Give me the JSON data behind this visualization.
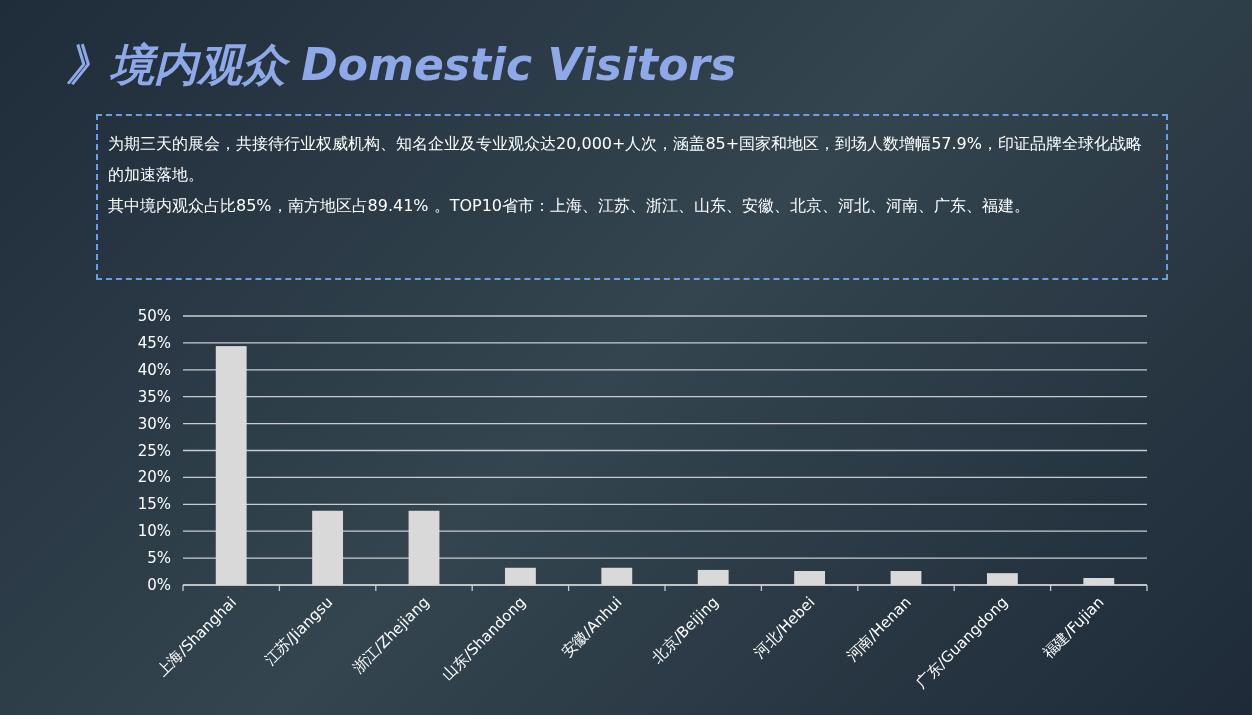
{
  "chart_data": {
    "type": "bar",
    "title": "》境内观众 Domestic Visitors",
    "annotations": [
      "为期三天的展会，共接待行业权威机构、知名企业及专业观众达20,000+人次，涵盖85+国家和地区，到场人数增幅57.9%，印证品牌全球化战略的加速落地。",
      "其中境内观众占比85%，南方地区占89.41% 。TOP10省市：上海、江苏、浙江、山东、安徽、北京、河北、河南、广东、福建。"
    ],
    "categories": [
      "上海/Shanghai",
      "江苏/Jiangsu",
      "浙江/Zhejiang",
      "山东/Shandong",
      "安徽/Anhui",
      "北京/Beijing",
      "河北/Hebei",
      "河南/Henan",
      "广东/Guangdong",
      "福建/Fujian"
    ],
    "values": [
      44.4,
      13.8,
      13.8,
      3.2,
      3.2,
      2.8,
      2.6,
      2.6,
      2.2,
      1.3
    ],
    "color": "#d9d9d9",
    "ylim": [
      0,
      50
    ],
    "yticks": [
      {
        "value": 0,
        "label": "0%"
      },
      {
        "value": 5,
        "label": "5%"
      },
      {
        "value": 10,
        "label": "10%"
      },
      {
        "value": 15,
        "label": "15%"
      },
      {
        "value": 20,
        "label": "20%"
      },
      {
        "value": 25,
        "label": "25%"
      },
      {
        "value": 30,
        "label": "30%"
      },
      {
        "value": 35,
        "label": "35%"
      },
      {
        "value": 40,
        "label": "40%"
      },
      {
        "value": 45,
        "label": "45%"
      },
      {
        "value": 50,
        "label": "50%"
      }
    ],
    "grid": "y"
  }
}
